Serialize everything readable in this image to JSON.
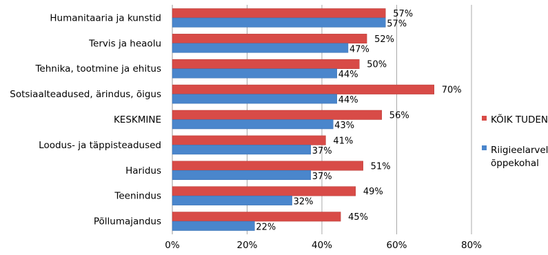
{
  "chart_data": {
    "type": "bar",
    "orientation": "horizontal",
    "categories": [
      "Humanitaaria ja kunstid",
      "Tervis ja heaolu",
      "Tehnika, tootmine ja ehitus",
      "Sotsiaalteadused, ärindus, õigus",
      "KESKMINE",
      "Loodus- ja täppisteadused",
      "Haridus",
      "Teenindus",
      "Põllumajandus"
    ],
    "series": [
      {
        "name": "KÕIK TUDENGID",
        "color": "#d84b47",
        "values": [
          57,
          52,
          50,
          70,
          56,
          41,
          51,
          49,
          45
        ],
        "labels": [
          "57%",
          "52%",
          "50%",
          "70%",
          "56%",
          "41%",
          "51%",
          "49%",
          "45%"
        ]
      },
      {
        "name": "Riigieelarvelisel õppekohal",
        "color": "#4a86cc",
        "values": [
          57,
          47,
          44,
          44,
          43,
          37,
          37,
          32,
          22
        ],
        "labels": [
          "57%",
          "47%",
          "44%",
          "44%",
          "43%",
          "37%",
          "37%",
          "32%",
          "22%"
        ]
      }
    ],
    "xlim": [
      0,
      80
    ],
    "x_ticks": [
      "0%",
      "20%",
      "40%",
      "60%",
      "80%"
    ],
    "x_tick_values": [
      0,
      20,
      40,
      60,
      80
    ],
    "grid": "vertical",
    "legend_position": "right",
    "legend": {
      "entries": [
        {
          "lines": [
            "KÕIK TUDENGID"
          ],
          "color": "#d84b47"
        },
        {
          "lines": [
            "Riigieelarvelisel",
            "õppekohal"
          ],
          "color": "#4a86cc"
        }
      ]
    }
  }
}
